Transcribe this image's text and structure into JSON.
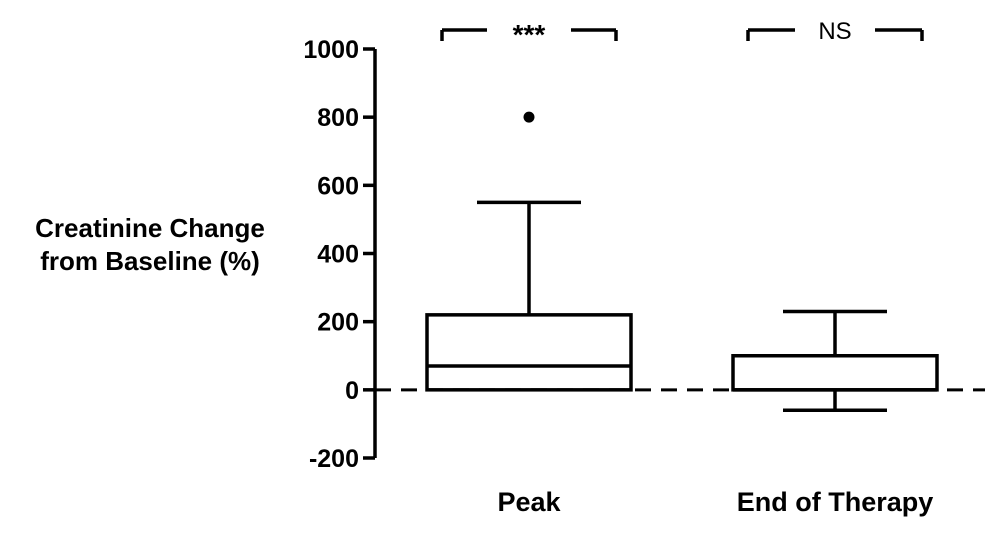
{
  "chart_data": {
    "type": "box",
    "ylabel": [
      "Creatinine Change",
      "from Baseline (%)"
    ],
    "ylim": [
      -200,
      1000
    ],
    "yticks": [
      1000,
      800,
      600,
      400,
      200,
      0,
      -200
    ],
    "reference_line": 0,
    "grid": false,
    "categories": [
      "Peak",
      "End of Therapy"
    ],
    "boxes": [
      {
        "category": "Peak",
        "whisker_low": 0,
        "q1": 0,
        "median": 70,
        "q3": 220,
        "whisker_high": 550,
        "outliers": [
          800
        ]
      },
      {
        "category": "End of Therapy",
        "whisker_low": -60,
        "q1": 0,
        "median": 0,
        "q3": 100,
        "whisker_high": 230,
        "outliers": []
      }
    ],
    "significance": [
      {
        "category": "Peak",
        "label": "***"
      },
      {
        "category": "End of Therapy",
        "label": "NS"
      }
    ]
  }
}
